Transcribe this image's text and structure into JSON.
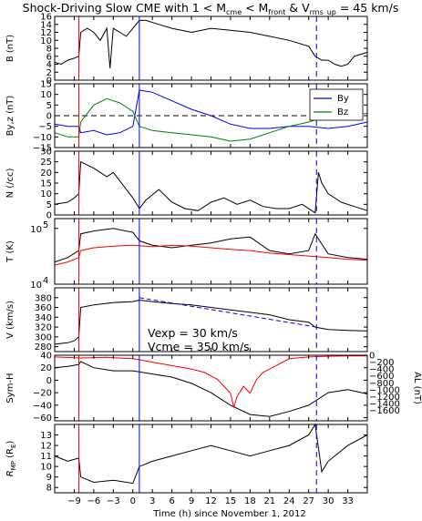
{
  "figure": {
    "title_prefix": "Shock-Driving Slow CME with 1 < M",
    "title_sub1": "cme",
    "title_mid": " < M",
    "title_sub2": "front",
    "title_suffix": "  &  V",
    "title_sub3": "rms_up",
    "title_end": " = 45 km/s",
    "xlabel": "Time (h) since November 1, 2012",
    "annotation_line1": "Vexp = 30 km/s",
    "annotation_line2": "Vcme = 350 km/s",
    "colors": {
      "black": "#000000",
      "red": "#ff0000",
      "blue": "#0000ff",
      "green": "#008000"
    }
  },
  "chart_data": {
    "type": "line",
    "xlim": [
      -12,
      36
    ],
    "x_ticks": [
      -9,
      -6,
      -3,
      0,
      3,
      6,
      9,
      12,
      15,
      18,
      21,
      24,
      27,
      30,
      33
    ],
    "x_tick_labels": [
      "-9",
      "-6",
      "-3",
      "0",
      "3",
      "6",
      "9",
      "12",
      "15",
      "18",
      "21",
      "24",
      "27",
      "30",
      "33"
    ],
    "vertical_lines": [
      {
        "x": -8.3,
        "color": "#ff0000",
        "style": "solid"
      },
      {
        "x": 1.0,
        "color": "#0000ff",
        "style": "solid"
      },
      {
        "x": 28.2,
        "color": "#0000ff",
        "style": "dashed"
      }
    ],
    "panels": [
      {
        "ylabel": "B (nT)",
        "ylim": [
          0,
          16
        ],
        "yticks": [
          0,
          2,
          4,
          6,
          8,
          10,
          12,
          14,
          16
        ],
        "series": [
          {
            "color": "#000000",
            "x": [
              -12,
              -11,
              -10,
              -9,
              -8.3,
              -8,
              -7,
              -6,
              -5,
              -4,
              -3.5,
              -3,
              -2,
              -1,
              0,
              1,
              2,
              4,
              6,
              9,
              12,
              15,
              18,
              21,
              24,
              27,
              28,
              29,
              30,
              31,
              32,
              33,
              34,
              35,
              36
            ],
            "y": [
              4.5,
              4,
              5,
              5.5,
              6,
              12,
              13,
              12,
              10,
              13,
              3,
              13,
              12,
              11,
              13,
              15,
              15,
              14,
              13,
              12,
              13,
              12.5,
              12,
              11,
              10,
              8.5,
              6,
              5,
              5,
              4,
              3.5,
              4,
              6,
              6.5,
              7
            ]
          }
        ]
      },
      {
        "ylabel": "By,z (nT)",
        "ylim": [
          -15,
          15
        ],
        "yticks": [
          -15,
          -10,
          -5,
          0,
          5,
          10,
          15
        ],
        "legend": [
          "By",
          "Bz"
        ],
        "series": [
          {
            "name": "By",
            "color": "#0000ff",
            "x": [
              -12,
              -10,
              -8.3,
              -8,
              -6,
              -4,
              -2,
              0,
              1,
              3,
              6,
              9,
              12,
              15,
              18,
              21,
              24,
              27,
              30,
              33,
              36
            ],
            "y": [
              -4,
              -5,
              -5,
              -8,
              -7,
              -9,
              -8,
              -5,
              12,
              11,
              7,
              3,
              0,
              -4,
              -6,
              -6,
              -5,
              -5,
              -6,
              -5,
              -3
            ]
          },
          {
            "name": "Bz",
            "color": "#008000",
            "x": [
              -12,
              -10,
              -8.3,
              -8,
              -6,
              -4,
              -2,
              0,
              1,
              3,
              6,
              9,
              12,
              15,
              18,
              21,
              24,
              27,
              30,
              33,
              36
            ],
            "y": [
              -8,
              -10,
              -10,
              -3,
              5,
              8,
              6,
              2,
              -5,
              -7,
              -8,
              -9,
              -10,
              -12,
              -11,
              -8,
              -5,
              -3,
              0,
              1,
              1
            ]
          }
        ]
      },
      {
        "ylabel": "N (/cc)",
        "ylim": [
          0,
          30
        ],
        "yticks": [
          0,
          5,
          10,
          15,
          20,
          25,
          30
        ],
        "series": [
          {
            "color": "#000000",
            "x": [
              -12,
              -10,
              -9,
              -8.3,
              -8,
              -6,
              -4,
              -3,
              -2,
              0,
              1,
              2,
              4,
              6,
              8,
              10,
              12,
              14,
              16,
              18,
              20,
              22,
              24,
              26,
              28,
              28.5,
              29,
              30,
              32,
              34,
              36
            ],
            "y": [
              5,
              6,
              8,
              10,
              25,
              22,
              18,
              20,
              16,
              8,
              3,
              7,
              12,
              6,
              3,
              2,
              6,
              8,
              5,
              7,
              4,
              3,
              3,
              5,
              1,
              20,
              15,
              10,
              6,
              4,
              2
            ]
          }
        ]
      },
      {
        "ylabel": "T (K)",
        "log": true,
        "ylim": [
          10000,
          150000
        ],
        "yticks": [
          10000,
          100000
        ],
        "ytick_labels": [
          "10^4",
          "10^5"
        ],
        "series": [
          {
            "name": "Tp",
            "color": "#000000",
            "x": [
              -12,
              -10,
              -8.3,
              -8,
              -6,
              -3,
              0,
              1,
              3,
              6,
              9,
              12,
              15,
              18,
              21,
              24,
              27,
              28,
              30,
              33,
              36
            ],
            "y": [
              25000,
              30000,
              40000,
              80000,
              90000,
              100000,
              85000,
              60000,
              50000,
              45000,
              50000,
              55000,
              65000,
              70000,
              40000,
              35000,
              40000,
              80000,
              35000,
              30000,
              28000
            ]
          },
          {
            "name": "Texp",
            "color": "#ff0000",
            "x": [
              -12,
              -10,
              -8.3,
              -8,
              -6,
              -3,
              0,
              3,
              6,
              9,
              12,
              15,
              18,
              21,
              24,
              27,
              30,
              33,
              36
            ],
            "y": [
              22000,
              25000,
              30000,
              40000,
              45000,
              48000,
              50000,
              47000,
              50000,
              48000,
              45000,
              42000,
              40000,
              36000,
              34000,
              32000,
              30000,
              28000,
              27000
            ]
          }
        ]
      },
      {
        "ylabel": "V (km/s)",
        "ylim": [
          270,
          400
        ],
        "yticks": [
          280,
          300,
          320,
          340,
          360,
          380
        ],
        "series": [
          {
            "name": "V",
            "color": "#000000",
            "x": [
              -12,
              -10,
              -9,
              -8.3,
              -8,
              -6,
              -3,
              0,
              1,
              3,
              6,
              9,
              12,
              15,
              18,
              21,
              24,
              27,
              28,
              30,
              33,
              36
            ],
            "y": [
              285,
              288,
              292,
              300,
              360,
              365,
              370,
              372,
              375,
              372,
              368,
              365,
              360,
              355,
              350,
              345,
              335,
              330,
              320,
              315,
              313,
              312
            ]
          },
          {
            "name": "Vfit",
            "color": "#0000ff",
            "dashed": true,
            "x": [
              1,
              28.2
            ],
            "y": [
              380,
              320
            ]
          }
        ]
      },
      {
        "ylabel": "Sym-H",
        "ylim": [
          -65,
          40
        ],
        "yticks": [
          -60,
          -40,
          -20,
          0,
          20,
          40
        ],
        "right_axis": {
          "ylabel": "AL (nT)",
          "ylim": [
            -1900,
            0
          ],
          "yticks": [
            0,
            -200,
            -400,
            -600,
            -800,
            -1000,
            -1200,
            -1400,
            -1600
          ],
          "ytick_labels": [
            "0",
            "−200",
            "−400",
            "−600",
            "−800",
            "−1000",
            "−1200",
            "−1400",
            "−1600"
          ]
        },
        "series": [
          {
            "name": "Sym-H",
            "color": "#000000",
            "x": [
              -12,
              -10,
              -8.3,
              -8,
              -6,
              -3,
              0,
              3,
              6,
              9,
              12,
              15,
              18,
              21,
              24,
              27,
              30,
              33,
              36
            ],
            "y": [
              20,
              22,
              25,
              30,
              20,
              15,
              15,
              10,
              5,
              -5,
              -20,
              -40,
              -55,
              -58,
              -50,
              -40,
              -20,
              -15,
              -22
            ]
          },
          {
            "name": "AL",
            "color": "#ff0000",
            "axis": "right",
            "x": [
              -12,
              -8,
              -4,
              0,
              3,
              6,
              9,
              11,
              13,
              14,
              15,
              15.5,
              16,
              17,
              18,
              19,
              20,
              22,
              24,
              27,
              30,
              33,
              36
            ],
            "y": [
              -50,
              -80,
              -60,
              -100,
              -200,
              -300,
              -400,
              -500,
              -700,
              -900,
              -1100,
              -1500,
              -1200,
              -900,
              -1100,
              -700,
              -500,
              -300,
              -100,
              -50,
              -30,
              -20,
              -20
            ]
          }
        ]
      },
      {
        "ylabel": "R_MP (R_E)",
        "ylim": [
          7.5,
          14
        ],
        "yticks": [
          8,
          9,
          10,
          11,
          12,
          13
        ],
        "series": [
          {
            "color": "#000000",
            "x": [
              -12,
              -10,
              -8.3,
              -8,
              -6,
              -3,
              0,
              1,
              3,
              6,
              9,
              12,
              15,
              18,
              21,
              24,
              27,
              28,
              29,
              30,
              33,
              36
            ],
            "y": [
              11,
              10.5,
              10.8,
              9,
              8.5,
              8.7,
              8.4,
              10,
              10.5,
              11,
              11.5,
              12,
              11.5,
              11,
              11.5,
              12,
              13,
              14,
              9.5,
              10.5,
              12,
              13
            ]
          }
        ]
      }
    ]
  }
}
